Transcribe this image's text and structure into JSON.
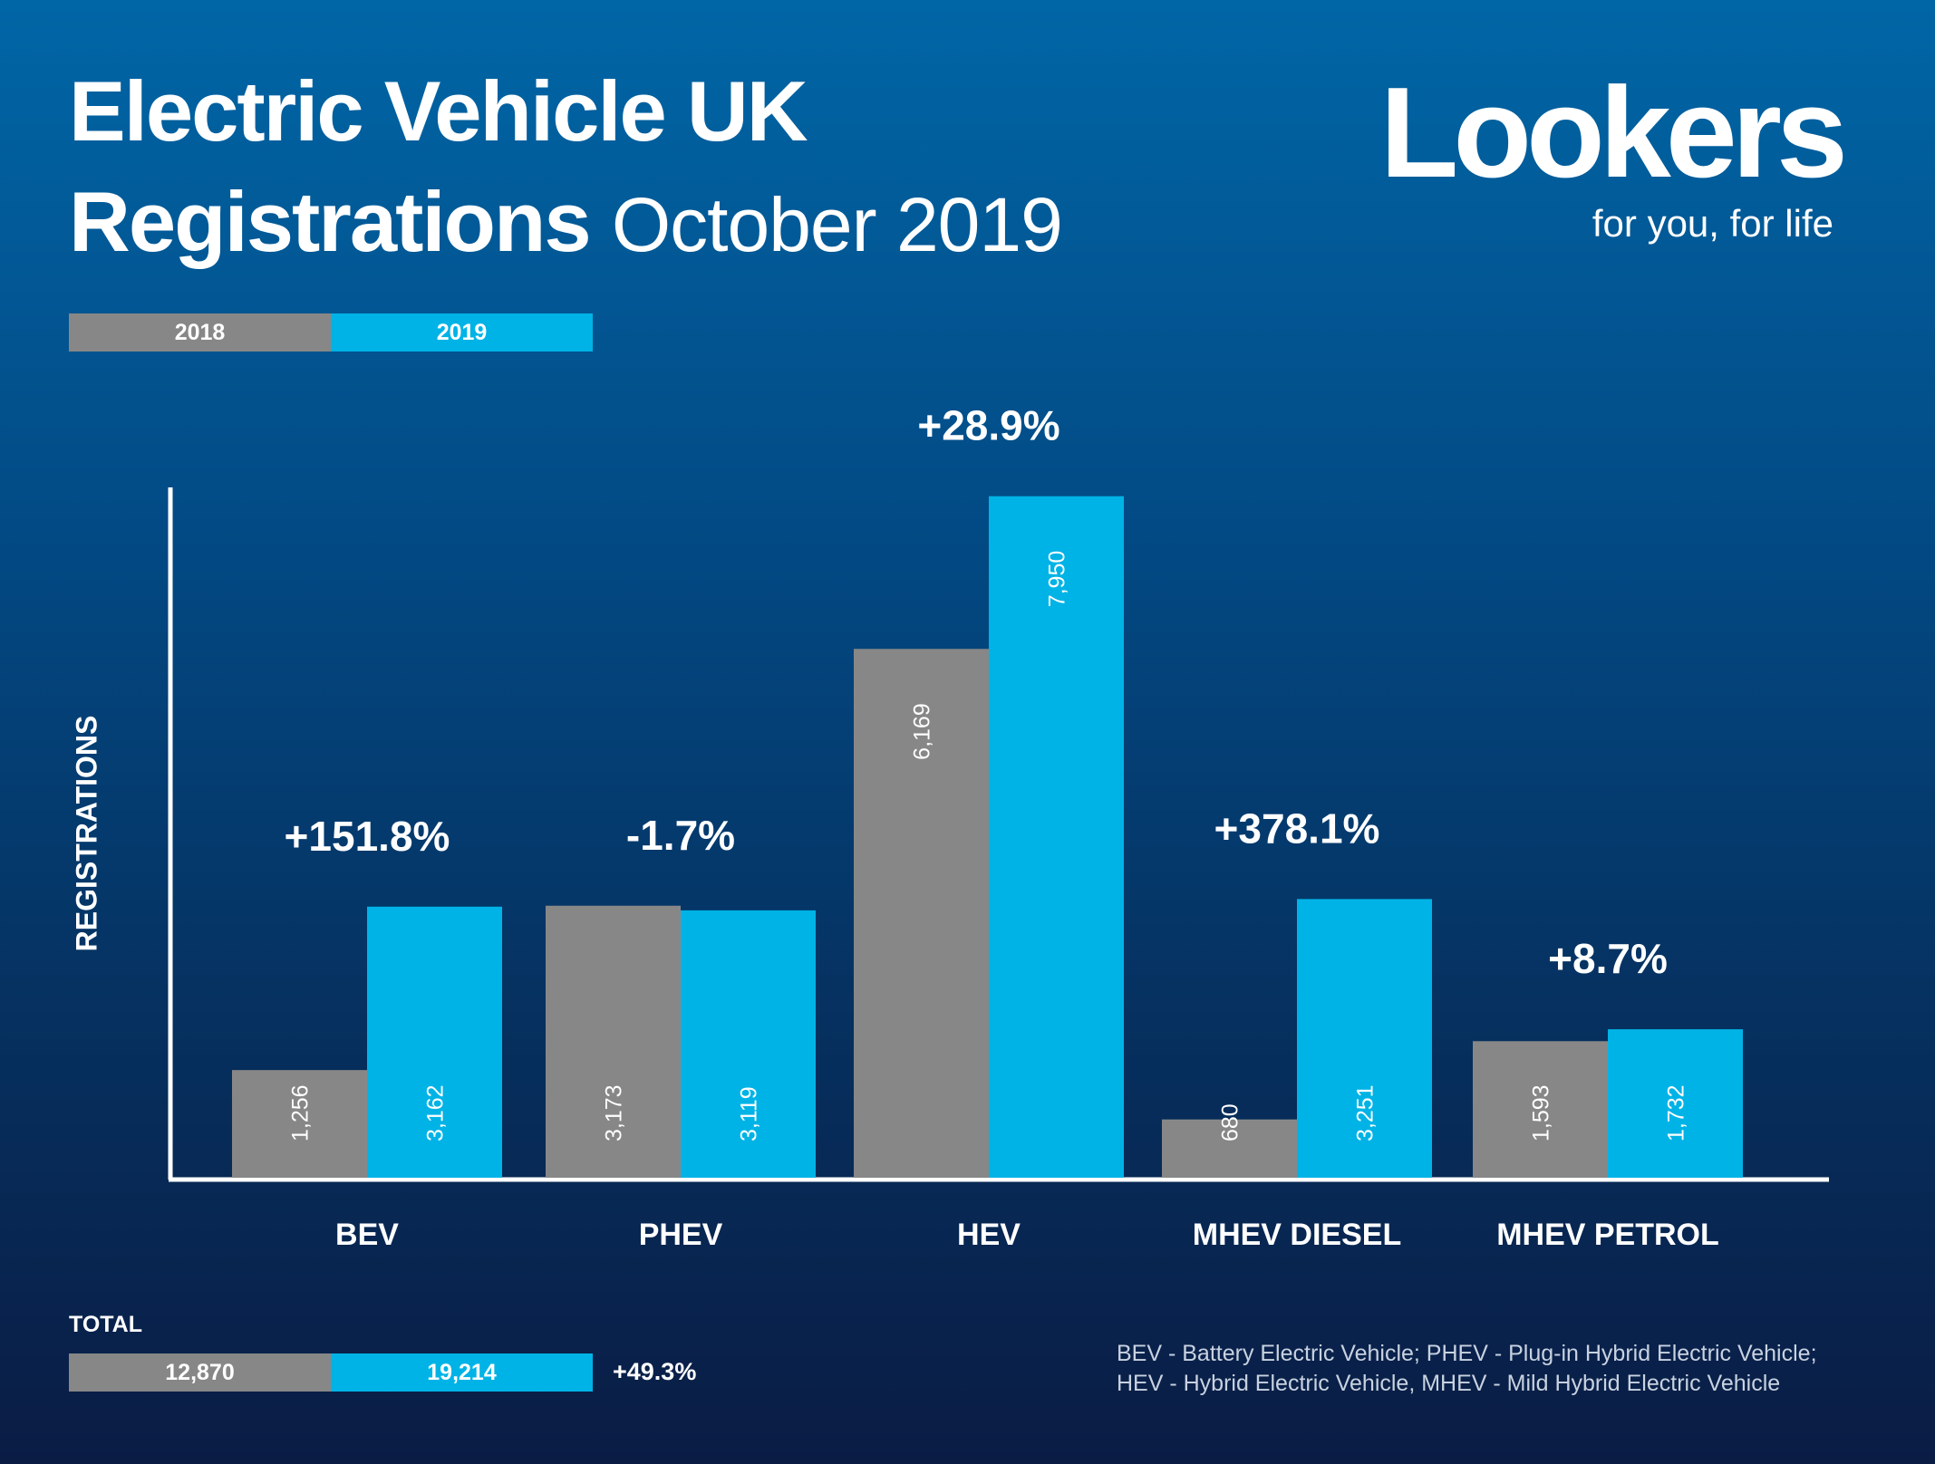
{
  "title": {
    "line1": "Electric Vehicle UK",
    "line2": "Registrations",
    "subtitle": "October 2019"
  },
  "logo": {
    "brand": "Lookers",
    "tagline": "for you, for life"
  },
  "legend": [
    "2018",
    "2019"
  ],
  "colors": {
    "series_2018": "#878787",
    "series_2019": "#00b3e6",
    "background_top": "#0166a6",
    "background_bottom": "#0a1c44"
  },
  "chart_data": {
    "type": "bar",
    "title": "Electric Vehicle UK Registrations October 2019",
    "ylabel": "REGISTRATIONS",
    "xlabel": "",
    "ylim": [
      0,
      8000
    ],
    "grid": false,
    "legend_position": "top-left",
    "categories": [
      "BEV",
      "PHEV",
      "HEV",
      "MHEV DIESEL",
      "MHEV PETROL"
    ],
    "series": [
      {
        "name": "2018",
        "values": [
          1256,
          3173,
          6169,
          680,
          1593
        ],
        "labels": [
          "1,256",
          "3,173",
          "6,169",
          "680",
          "1,593"
        ]
      },
      {
        "name": "2019",
        "values": [
          3162,
          3119,
          7950,
          3251,
          1732
        ],
        "labels": [
          "3,162",
          "3,119",
          "7,950",
          "3,251",
          "1,732"
        ]
      }
    ],
    "annotations": [
      "+151.8%",
      "-1.7%",
      "+28.9%",
      "+378.1%",
      "+8.7%"
    ]
  },
  "totals": {
    "label": "TOTAL",
    "value_2018": "12,870",
    "value_2019": "19,214",
    "change": "+49.3%"
  },
  "footnote": {
    "line1": "BEV - Battery Electric Vehicle; PHEV - Plug-in Hybrid Electric Vehicle;",
    "line2": "HEV - Hybrid Electric Vehicle, MHEV - Mild Hybrid Electric Vehicle"
  }
}
